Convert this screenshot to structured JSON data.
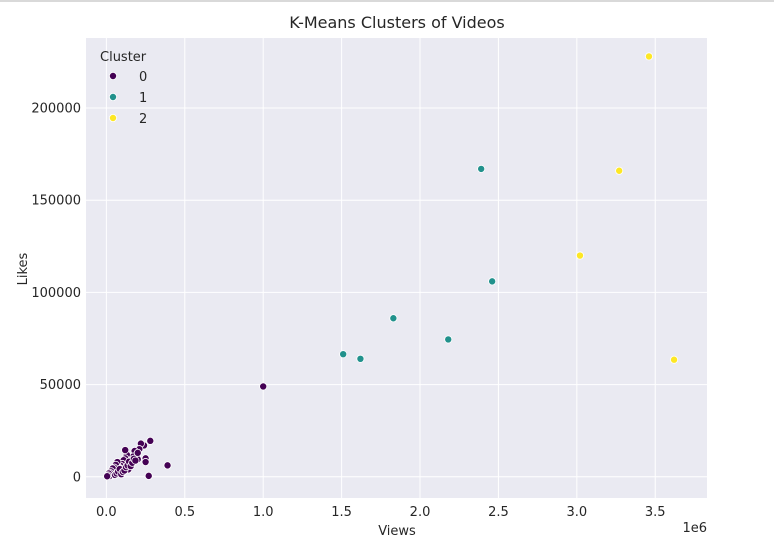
{
  "chart_data": {
    "type": "scatter",
    "title": "K-Means Clusters of Videos",
    "xlabel": "Views",
    "ylabel": "Likes",
    "x_offset_label": "1e6",
    "xlim": [
      -0.13,
      3.83
    ],
    "ylim": [
      -11500,
      238000
    ],
    "x_ticks": [
      {
        "value": 0.0,
        "label": "0.0"
      },
      {
        "value": 0.5,
        "label": "0.5"
      },
      {
        "value": 1.0,
        "label": "1.0"
      },
      {
        "value": 1.5,
        "label": "1.5"
      },
      {
        "value": 2.0,
        "label": "2.0"
      },
      {
        "value": 2.5,
        "label": "2.5"
      },
      {
        "value": 3.0,
        "label": "3.0"
      },
      {
        "value": 3.5,
        "label": "3.5"
      }
    ],
    "y_ticks": [
      {
        "value": 0,
        "label": "0"
      },
      {
        "value": 50000,
        "label": "50000"
      },
      {
        "value": 100000,
        "label": "100000"
      },
      {
        "value": 150000,
        "label": "150000"
      },
      {
        "value": 200000,
        "label": "200000"
      }
    ],
    "grid": true,
    "background": "#eaeaf2",
    "legend": {
      "title": "Cluster",
      "position": "top-left",
      "entries": [
        {
          "label": "0",
          "color": "#440154"
        },
        {
          "label": "1",
          "color": "#21918c"
        },
        {
          "label": "2",
          "color": "#fde725"
        }
      ]
    },
    "series": [
      {
        "name": "0",
        "color": "#440154",
        "points": [
          [
            1.0,
            49000
          ],
          [
            0.39,
            6200
          ],
          [
            0.28,
            19500
          ],
          [
            0.27,
            500
          ],
          [
            0.24,
            17000
          ],
          [
            0.25,
            10000
          ],
          [
            0.25,
            8000
          ],
          [
            0.22,
            18000
          ],
          [
            0.21,
            15000
          ],
          [
            0.2,
            9500
          ],
          [
            0.18,
            14000
          ],
          [
            0.17,
            11000
          ],
          [
            0.16,
            9000
          ],
          [
            0.15,
            6500
          ],
          [
            0.14,
            4000
          ],
          [
            0.13,
            12000
          ],
          [
            0.13,
            7000
          ],
          [
            0.12,
            14500
          ],
          [
            0.12,
            10000
          ],
          [
            0.11,
            9000
          ],
          [
            0.11,
            5500
          ],
          [
            0.1,
            7000
          ],
          [
            0.1,
            3500
          ],
          [
            0.09,
            2500
          ],
          [
            0.09,
            6000
          ],
          [
            0.08,
            5000
          ],
          [
            0.08,
            2000
          ],
          [
            0.07,
            8000
          ],
          [
            0.07,
            4000
          ],
          [
            0.06,
            6500
          ],
          [
            0.06,
            3000
          ],
          [
            0.05,
            5000
          ],
          [
            0.05,
            1500
          ],
          [
            0.045,
            3500
          ],
          [
            0.04,
            4500
          ],
          [
            0.04,
            800
          ],
          [
            0.035,
            2500
          ],
          [
            0.03,
            3000
          ],
          [
            0.03,
            1000
          ],
          [
            0.025,
            2000
          ],
          [
            0.02,
            1200
          ],
          [
            0.02,
            400
          ],
          [
            0.015,
            1800
          ],
          [
            0.01,
            800
          ],
          [
            0.005,
            300
          ],
          [
            0.055,
            1000
          ],
          [
            0.065,
            1800
          ],
          [
            0.075,
            2800
          ],
          [
            0.085,
            4200
          ],
          [
            0.095,
            1400
          ],
          [
            0.105,
            2600
          ],
          [
            0.115,
            3400
          ],
          [
            0.125,
            5200
          ],
          [
            0.135,
            6200
          ],
          [
            0.145,
            8200
          ],
          [
            0.155,
            5800
          ],
          [
            0.165,
            7600
          ],
          [
            0.175,
            9800
          ],
          [
            0.185,
            8800
          ],
          [
            0.2,
            13000
          ]
        ]
      },
      {
        "name": "1",
        "color": "#21918c",
        "points": [
          [
            1.51,
            66500
          ],
          [
            1.62,
            64000
          ],
          [
            1.83,
            86000
          ],
          [
            2.18,
            74500
          ],
          [
            2.39,
            167000
          ],
          [
            2.46,
            106000
          ]
        ]
      },
      {
        "name": "2",
        "color": "#fde725",
        "points": [
          [
            3.02,
            120000
          ],
          [
            3.27,
            166000
          ],
          [
            3.46,
            228000
          ],
          [
            3.62,
            63500
          ]
        ]
      }
    ]
  }
}
